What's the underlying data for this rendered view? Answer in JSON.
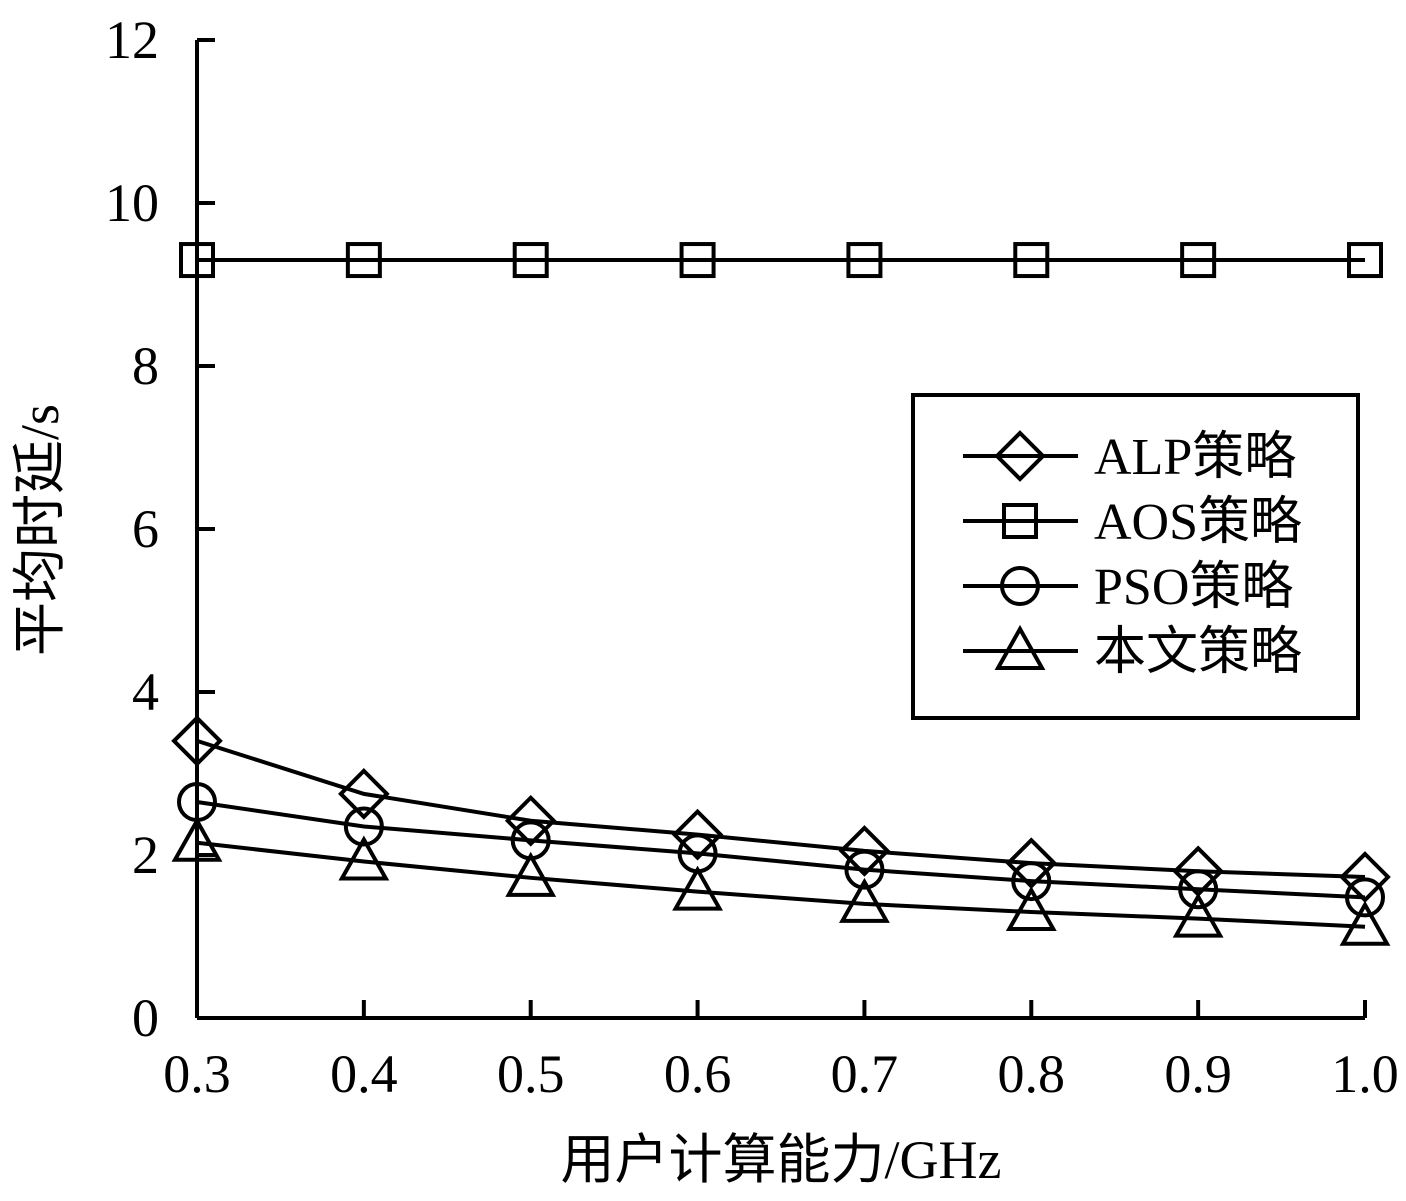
{
  "chart_data": {
    "type": "line",
    "title": "",
    "xlabel": "用户计算能力/GHz",
    "ylabel": "平均时延/s",
    "x": [
      0.3,
      0.4,
      0.5,
      0.6,
      0.7,
      0.8,
      0.9,
      1.0
    ],
    "x_tick_labels": [
      "0.3",
      "0.4",
      "0.5",
      "0.6",
      "0.7",
      "0.8",
      "0.9",
      "1.0"
    ],
    "xlim": [
      0.3,
      1.0
    ],
    "ylim": [
      0,
      12
    ],
    "y_ticks": [
      0,
      2,
      4,
      6,
      8,
      10,
      12
    ],
    "y_tick_labels": [
      "0",
      "2",
      "4",
      "6",
      "8",
      "10",
      "12"
    ],
    "grid": false,
    "legend_position": "right",
    "series": [
      {
        "name": "ALP策略",
        "marker": "diamond",
        "color": "#000000",
        "values": [
          3.4,
          2.75,
          2.42,
          2.25,
          2.05,
          1.9,
          1.8,
          1.73
        ]
      },
      {
        "name": "AOS策略",
        "marker": "square",
        "color": "#000000",
        "values": [
          9.3,
          9.3,
          9.3,
          9.3,
          9.3,
          9.3,
          9.3,
          9.3
        ]
      },
      {
        "name": "PSO策略",
        "marker": "circle",
        "color": "#000000",
        "values": [
          2.65,
          2.35,
          2.18,
          2.02,
          1.82,
          1.68,
          1.58,
          1.48
        ]
      },
      {
        "name": "本文策略",
        "marker": "triangle",
        "color": "#000000",
        "values": [
          2.15,
          1.92,
          1.72,
          1.55,
          1.4,
          1.3,
          1.22,
          1.12
        ]
      }
    ]
  }
}
